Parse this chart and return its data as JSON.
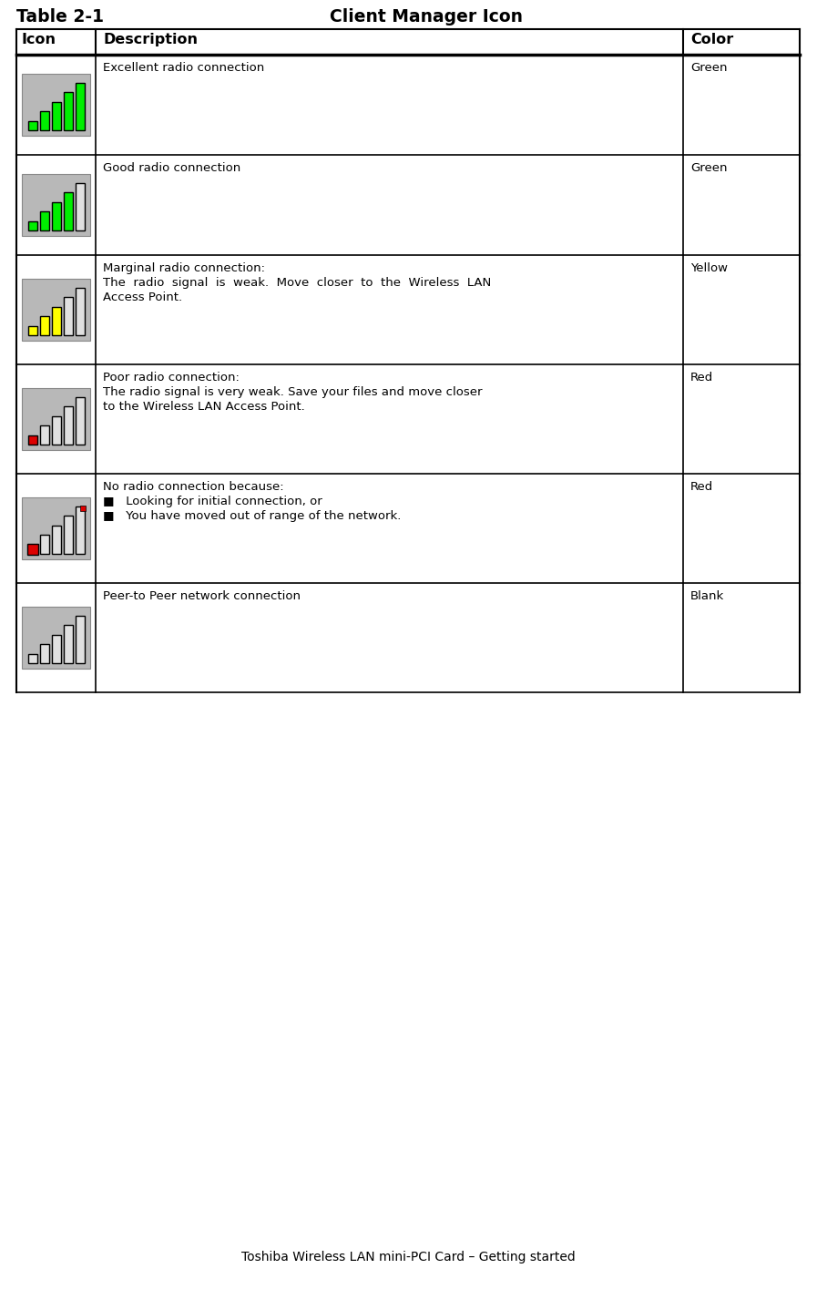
{
  "title": "Table 2-1",
  "table_title": "Client Manager Icon",
  "col_headers": [
    "Icon",
    "Description",
    "Color"
  ],
  "footer": "Toshiba Wireless LAN mini-PCI Card – Getting started",
  "rows": [
    {
      "description": "Excellent radio connection",
      "color_text": "Green",
      "icon_type": "excellent",
      "bar_color": "#00ee00",
      "highlight_color": null,
      "desc_lines": [
        "Excellent radio connection"
      ]
    },
    {
      "description": "Good radio connection",
      "color_text": "Green",
      "icon_type": "good",
      "bar_color": "#00ee00",
      "highlight_color": null,
      "desc_lines": [
        "Good radio connection"
      ]
    },
    {
      "description": "Marginal radio connection:",
      "color_text": "Yellow",
      "icon_type": "marginal",
      "bar_color": "#ffff00",
      "highlight_color": null,
      "desc_lines": [
        "Marginal radio connection:",
        "The  radio  signal  is  weak.  Move  closer  to  the  Wireless  LAN",
        "Access Point."
      ]
    },
    {
      "description": "Poor radio connection:",
      "color_text": "Red",
      "icon_type": "poor",
      "bar_color": "#dd0000",
      "highlight_color": null,
      "desc_lines": [
        "Poor radio connection:",
        "The radio signal is very weak. Save your files and move closer",
        "to the Wireless LAN Access Point."
      ]
    },
    {
      "description": "No radio connection because:",
      "color_text": "Red",
      "icon_type": "no_connection",
      "bar_color": "#dd0000",
      "highlight_color": null,
      "desc_lines": [
        "No radio connection because:",
        "■   Looking for initial connection, or",
        "■   You have moved out of range of the network."
      ]
    },
    {
      "description": "Peer-to Peer network connection",
      "color_text": "Blank",
      "icon_type": "peer",
      "bar_color": null,
      "highlight_color": null,
      "desc_lines": [
        "Peer-to Peer network connection"
      ]
    }
  ],
  "bg_color": "#ffffff",
  "border_color": "#000000",
  "text_color": "#000000",
  "icon_bg": "#b8b8b8",
  "icon_bar_outline": "#000000",
  "icon_bar_unfilled": "#e0e0e0"
}
